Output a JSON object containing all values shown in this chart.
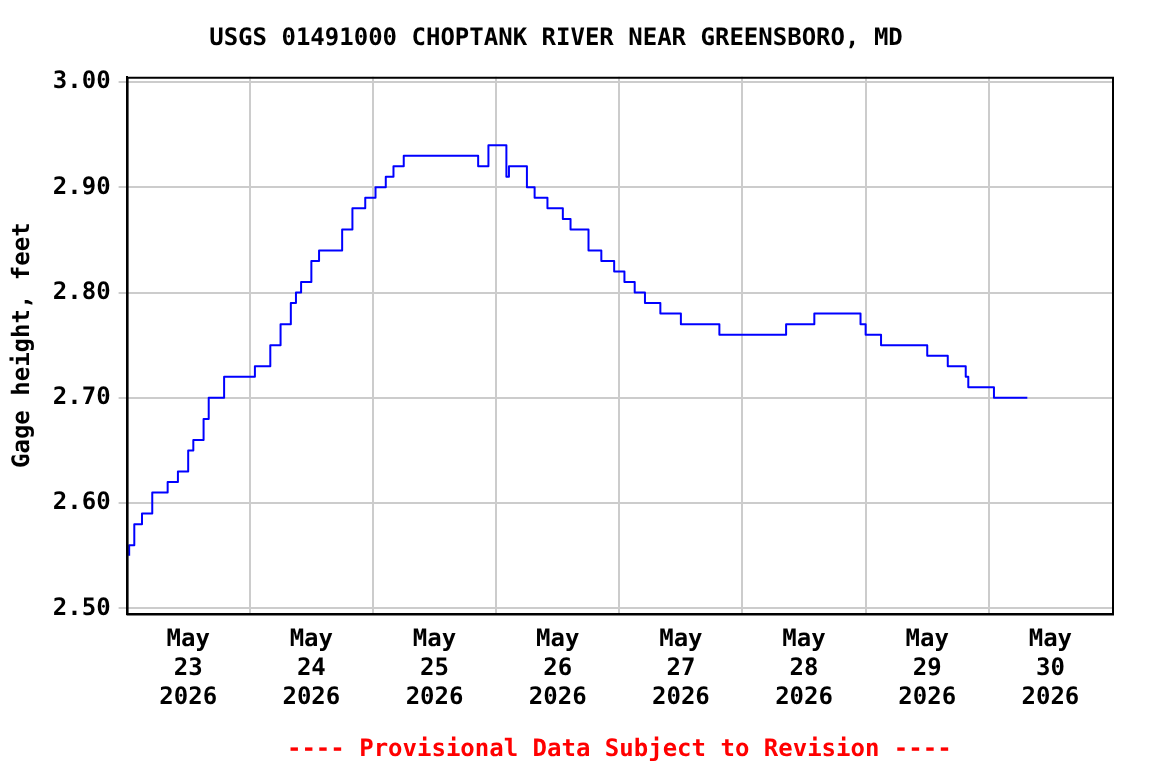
{
  "chart_data": {
    "type": "step",
    "title": "USGS 01491000 CHOPTANK RIVER NEAR GREENSBORO, MD",
    "ylabel": "Gage height, feet",
    "annotations": [
      "---- Provisional Data Subject to Revision ----"
    ],
    "x": [
      "2026-05-23T00:30",
      "2026-05-23T01:30",
      "2026-05-23T03:00",
      "2026-05-23T05:00",
      "2026-05-23T08:00",
      "2026-05-23T10:00",
      "2026-05-23T12:00",
      "2026-05-23T13:00",
      "2026-05-23T15:00",
      "2026-05-23T16:00",
      "2026-05-23T19:00",
      "2026-05-23T22:00",
      "2026-05-24T01:00",
      "2026-05-24T02:00",
      "2026-05-24T04:00",
      "2026-05-24T06:00",
      "2026-05-24T08:00",
      "2026-05-24T09:00",
      "2026-05-24T10:00",
      "2026-05-24T12:00",
      "2026-05-24T13:30",
      "2026-05-24T15:00",
      "2026-05-24T18:00",
      "2026-05-24T20:00",
      "2026-05-24T22:30",
      "2026-05-25T00:30",
      "2026-05-25T02:30",
      "2026-05-25T04:00",
      "2026-05-25T06:00",
      "2026-05-25T11:30",
      "2026-05-25T20:30",
      "2026-05-25T22:30",
      "2026-05-26T02:00",
      "2026-05-26T02:30",
      "2026-05-26T06:00",
      "2026-05-26T07:30",
      "2026-05-26T10:00",
      "2026-05-26T13:00",
      "2026-05-26T14:30",
      "2026-05-26T18:00",
      "2026-05-26T20:30",
      "2026-05-26T23:00",
      "2026-05-27T01:00",
      "2026-05-27T03:00",
      "2026-05-27T05:00",
      "2026-05-27T08:00",
      "2026-05-27T12:00",
      "2026-05-27T16:00",
      "2026-05-27T19:30",
      "2026-05-27T21:00",
      "2026-05-28T08:30",
      "2026-05-28T09:00",
      "2026-05-28T14:00",
      "2026-05-28T17:00",
      "2026-05-28T23:00",
      "2026-05-29T00:00",
      "2026-05-29T03:00",
      "2026-05-29T08:00",
      "2026-05-29T12:00",
      "2026-05-29T13:00",
      "2026-05-29T16:00",
      "2026-05-29T17:00",
      "2026-05-29T19:30",
      "2026-05-29T20:00",
      "2026-05-30T01:00",
      "2026-05-30T04:00",
      "2026-05-30T07:30"
    ],
    "series": [
      {
        "color": "#0000ff",
        "values": [
          2.55,
          2.56,
          2.58,
          2.59,
          2.61,
          2.62,
          2.63,
          2.65,
          2.66,
          2.68,
          2.7,
          2.72,
          2.72,
          2.73,
          2.73,
          2.75,
          2.77,
          2.79,
          2.8,
          2.81,
          2.83,
          2.84,
          2.84,
          2.86,
          2.88,
          2.89,
          2.9,
          2.91,
          2.92,
          2.93,
          2.93,
          2.92,
          2.94,
          2.91,
          2.92,
          2.9,
          2.89,
          2.88,
          2.87,
          2.86,
          2.84,
          2.83,
          2.82,
          2.81,
          2.8,
          2.79,
          2.78,
          2.77,
          2.77,
          2.76,
          2.76,
          2.77,
          2.77,
          2.78,
          2.78,
          2.77,
          2.76,
          2.75,
          2.75,
          2.74,
          2.74,
          2.73,
          2.73,
          2.72,
          2.71,
          2.7,
          2.7
        ]
      }
    ],
    "xlim": [
      "2026-05-23T00:00",
      "2026-05-31T00:00"
    ],
    "xticks": [
      {
        "value": "2026-05-24T00:00",
        "label": null
      },
      {
        "value": "2026-05-25T00:00",
        "label": null
      },
      {
        "value": "2026-05-26T00:00",
        "label": null
      },
      {
        "value": "2026-05-27T00:00",
        "label": null
      },
      {
        "value": "2026-05-28T00:00",
        "label": null
      },
      {
        "value": "2026-05-29T00:00",
        "label": null
      },
      {
        "value": "2026-05-30T00:00",
        "label": null
      },
      {
        "value": "2026-05-23T12:00",
        "label": "May\n23\n2026"
      },
      {
        "value": "2026-05-24T12:00",
        "label": "May\n24\n2026"
      },
      {
        "value": "2026-05-25T12:00",
        "label": "May\n25\n2026"
      },
      {
        "value": "2026-05-26T12:00",
        "label": "May\n26\n2026"
      },
      {
        "value": "2026-05-27T12:00",
        "label": "May\n27\n2026"
      },
      {
        "value": "2026-05-28T12:00",
        "label": "May\n28\n2026"
      },
      {
        "value": "2026-05-29T12:00",
        "label": "May\n29\n2026"
      },
      {
        "value": "2026-05-30T12:00",
        "label": "May\n30\n2026"
      }
    ],
    "ylim": [
      2.495,
      3.005
    ],
    "yticks": [
      {
        "value": 2.5,
        "label": "2.50"
      },
      {
        "value": 2.6,
        "label": "2.60"
      },
      {
        "value": 2.7,
        "label": "2.70"
      },
      {
        "value": 2.8,
        "label": "2.80"
      },
      {
        "value": 2.9,
        "label": "2.90"
      },
      {
        "value": 3.0,
        "label": "3.00"
      }
    ],
    "grid": true,
    "legend": false,
    "line_style": "solid",
    "marker": "none"
  }
}
